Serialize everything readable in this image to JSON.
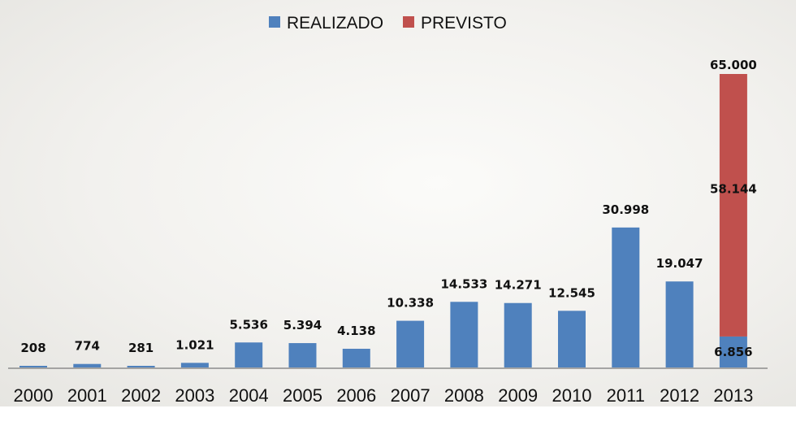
{
  "colors": {
    "realizado": "#4f81bd",
    "previsto": "#c0504d",
    "axis": "#8c8c8c",
    "text": "#111111"
  },
  "chart_data": {
    "type": "bar",
    "stacked": true,
    "categories": [
      "2000",
      "2001",
      "2002",
      "2003",
      "2004",
      "2005",
      "2006",
      "2007",
      "2008",
      "2009",
      "2010",
      "2011",
      "2012",
      "2013"
    ],
    "series": [
      {
        "name": "REALIZADO",
        "values": [
          208,
          774,
          281,
          1021,
          5536,
          5394,
          4138,
          10338,
          14533,
          14271,
          12545,
          30998,
          19047,
          6856
        ],
        "labels": [
          "208",
          "774",
          "281",
          "1.021",
          "5.536",
          "5.394",
          "4.138",
          "10.338",
          "14.533",
          "14.271",
          "12.545",
          "30.998",
          "19.047",
          "6.856"
        ]
      },
      {
        "name": "PREVISTO",
        "values": [
          null,
          null,
          null,
          null,
          null,
          null,
          null,
          null,
          null,
          null,
          null,
          null,
          null,
          58144
        ],
        "labels": [
          "",
          "",
          "",
          "",
          "",
          "",
          "",
          "",
          "",
          "",
          "",
          "",
          "",
          "58.144"
        ]
      }
    ],
    "totals": [
      {
        "category": "2013",
        "label": "65.000",
        "value": 65000
      }
    ],
    "legend_position": "top-center",
    "grid": false,
    "ylim": [
      0,
      65000
    ],
    "title": "",
    "xlabel": "",
    "ylabel": ""
  }
}
